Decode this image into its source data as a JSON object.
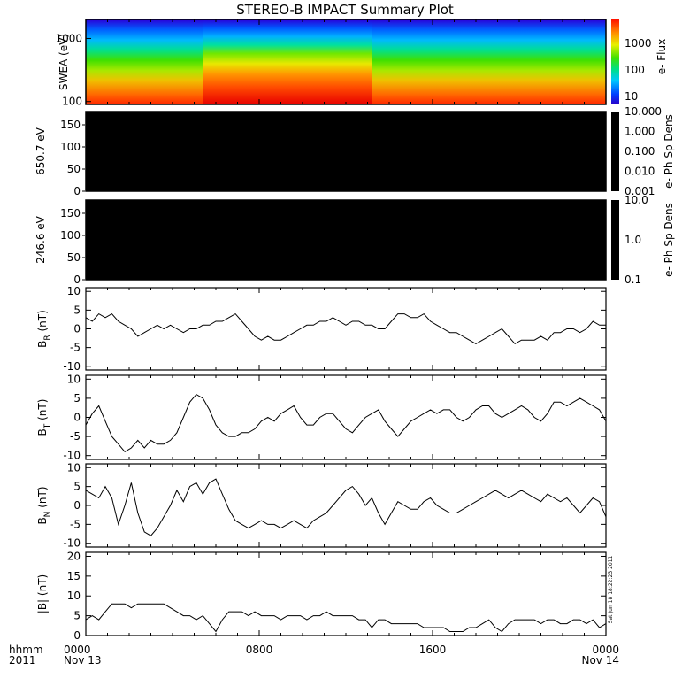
{
  "title": "STEREO-B IMPACT Summary Plot",
  "side_stamp": "Sat Jun 18 18:22:23 2011",
  "x_axis": {
    "corner_labels": [
      "hhmm",
      "2011"
    ],
    "range_hours": [
      0,
      24
    ],
    "ticks": [
      {
        "h": 0,
        "label": "0000",
        "sub": "Nov 13"
      },
      {
        "h": 8,
        "label": "0800",
        "sub": ""
      },
      {
        "h": 16,
        "label": "1600",
        "sub": ""
      },
      {
        "h": 24,
        "label": "0000",
        "sub": "Nov 14"
      }
    ]
  },
  "chart_data": [
    {
      "id": "swea",
      "type": "heatmap",
      "ylabel": "SWEA (eV)",
      "yscale": "log",
      "ylim": [
        90,
        2000
      ],
      "yticks": [
        {
          "v": 100,
          "label": "100"
        },
        {
          "v": 1000,
          "label": "1000"
        }
      ],
      "colorbar": {
        "label": "e- Flux",
        "scale": "log",
        "ticks": [
          {
            "v": 10,
            "label": "10"
          },
          {
            "v": 100,
            "label": "100"
          },
          {
            "v": 1000,
            "label": "1000"
          }
        ],
        "range": [
          5,
          8000
        ]
      },
      "note": "Electron flux spectrogram; high flux (red) at low energy, falling to blue above ~1500 eV; enhanced band between ~05:30 and ~13:00 UT."
    },
    {
      "id": "pad650",
      "type": "heatmap",
      "ylabel": "650.7 eV",
      "ylim": [
        0,
        180
      ],
      "yticks": [
        0,
        50,
        100,
        150
      ],
      "fill": "#000000",
      "colorbar": {
        "label": "e- Ph Sp Dens",
        "scale": "log",
        "ticks": [
          "10.000",
          "1.000",
          "0.100",
          "0.010",
          "0.001"
        ]
      }
    },
    {
      "id": "pad246",
      "type": "heatmap",
      "ylabel": "246.6 eV",
      "ylim": [
        0,
        180
      ],
      "yticks": [
        0,
        50,
        100,
        150
      ],
      "fill": "#000000",
      "colorbar": {
        "label": "e- Ph Sp Dens",
        "scale": "log",
        "ticks": [
          "10.0",
          "1.0",
          "0.1"
        ]
      }
    },
    {
      "id": "br",
      "type": "line",
      "ylabel": "B",
      "ylabel_sub": "R",
      "ylabel_unit": "(nT)",
      "ylim": [
        -11,
        11
      ],
      "yticks": [
        -10,
        -5,
        0,
        5,
        10
      ],
      "x": [
        0,
        0.3,
        0.6,
        0.9,
        1.2,
        1.5,
        1.8,
        2.1,
        2.4,
        2.7,
        3.0,
        3.3,
        3.6,
        3.9,
        4.2,
        4.5,
        4.8,
        5.1,
        5.4,
        5.7,
        6.0,
        6.3,
        6.6,
        6.9,
        7.2,
        7.5,
        7.8,
        8.1,
        8.4,
        8.7,
        9.0,
        9.3,
        9.6,
        9.9,
        10.2,
        10.5,
        10.8,
        11.1,
        11.4,
        11.7,
        12.0,
        12.3,
        12.6,
        12.9,
        13.2,
        13.5,
        13.8,
        14.1,
        14.4,
        14.7,
        15.0,
        15.3,
        15.6,
        15.9,
        16.2,
        16.5,
        16.8,
        17.1,
        17.4,
        17.7,
        18.0,
        18.3,
        18.6,
        18.9,
        19.2,
        19.5,
        19.8,
        20.1,
        20.4,
        20.7,
        21.0,
        21.3,
        21.6,
        21.9,
        22.2,
        22.5,
        22.8,
        23.1,
        23.4,
        23.7,
        24.0
      ],
      "y": [
        3,
        2,
        4,
        3,
        4,
        2,
        1,
        0,
        -2,
        -1,
        0,
        1,
        0,
        1,
        0,
        -1,
        0,
        0,
        1,
        1,
        2,
        2,
        3,
        4,
        2,
        0,
        -2,
        -3,
        -2,
        -3,
        -3,
        -2,
        -1,
        0,
        1,
        1,
        2,
        2,
        3,
        2,
        1,
        2,
        2,
        1,
        1,
        0,
        0,
        2,
        4,
        4,
        3,
        3,
        4,
        2,
        1,
        0,
        -1,
        -1,
        -2,
        -3,
        -4,
        -3,
        -2,
        -1,
        0,
        -2,
        -4,
        -3,
        -3,
        -3,
        -2,
        -3,
        -1,
        -1,
        0,
        0,
        -1,
        0,
        2,
        1,
        1
      ]
    },
    {
      "id": "bt",
      "type": "line",
      "ylabel": "B",
      "ylabel_sub": "T",
      "ylabel_unit": "(nT)",
      "ylim": [
        -11,
        11
      ],
      "yticks": [
        -10,
        -5,
        0,
        5,
        10
      ],
      "x": [
        0,
        0.3,
        0.6,
        0.9,
        1.2,
        1.5,
        1.8,
        2.1,
        2.4,
        2.7,
        3.0,
        3.3,
        3.6,
        3.9,
        4.2,
        4.5,
        4.8,
        5.1,
        5.4,
        5.7,
        6.0,
        6.3,
        6.6,
        6.9,
        7.2,
        7.5,
        7.8,
        8.1,
        8.4,
        8.7,
        9.0,
        9.3,
        9.6,
        9.9,
        10.2,
        10.5,
        10.8,
        11.1,
        11.4,
        11.7,
        12.0,
        12.3,
        12.6,
        12.9,
        13.2,
        13.5,
        13.8,
        14.1,
        14.4,
        14.7,
        15.0,
        15.3,
        15.6,
        15.9,
        16.2,
        16.5,
        16.8,
        17.1,
        17.4,
        17.7,
        18.0,
        18.3,
        18.6,
        18.9,
        19.2,
        19.5,
        19.8,
        20.1,
        20.4,
        20.7,
        21.0,
        21.3,
        21.6,
        21.9,
        22.2,
        22.5,
        22.8,
        23.1,
        23.4,
        23.7,
        24.0
      ],
      "y": [
        -2,
        1,
        3,
        -1,
        -5,
        -7,
        -9,
        -8,
        -6,
        -8,
        -6,
        -7,
        -7,
        -6,
        -4,
        0,
        4,
        6,
        5,
        2,
        -2,
        -4,
        -5,
        -5,
        -4,
        -4,
        -3,
        -1,
        0,
        -1,
        1,
        2,
        3,
        0,
        -2,
        -2,
        0,
        1,
        1,
        -1,
        -3,
        -4,
        -2,
        0,
        1,
        2,
        -1,
        -3,
        -5,
        -3,
        -1,
        0,
        1,
        2,
        1,
        2,
        2,
        0,
        -1,
        0,
        2,
        3,
        3,
        1,
        0,
        1,
        2,
        3,
        2,
        0,
        -1,
        1,
        4,
        4,
        3,
        4,
        5,
        4,
        3,
        2,
        -1
      ]
    },
    {
      "id": "bn",
      "type": "line",
      "ylabel": "B",
      "ylabel_sub": "N",
      "ylabel_unit": "(nT)",
      "ylim": [
        -11,
        11
      ],
      "yticks": [
        -10,
        -5,
        0,
        5,
        10
      ],
      "x": [
        0,
        0.3,
        0.6,
        0.9,
        1.2,
        1.5,
        1.8,
        2.1,
        2.4,
        2.7,
        3.0,
        3.3,
        3.6,
        3.9,
        4.2,
        4.5,
        4.8,
        5.1,
        5.4,
        5.7,
        6.0,
        6.3,
        6.6,
        6.9,
        7.2,
        7.5,
        7.8,
        8.1,
        8.4,
        8.7,
        9.0,
        9.3,
        9.6,
        9.9,
        10.2,
        10.5,
        10.8,
        11.1,
        11.4,
        11.7,
        12.0,
        12.3,
        12.6,
        12.9,
        13.2,
        13.5,
        13.8,
        14.1,
        14.4,
        14.7,
        15.0,
        15.3,
        15.6,
        15.9,
        16.2,
        16.5,
        16.8,
        17.1,
        17.4,
        17.7,
        18.0,
        18.3,
        18.6,
        18.9,
        19.2,
        19.5,
        19.8,
        20.1,
        20.4,
        20.7,
        21.0,
        21.3,
        21.6,
        21.9,
        22.2,
        22.5,
        22.8,
        23.1,
        23.4,
        23.7,
        24.0
      ],
      "y": [
        4,
        3,
        2,
        5,
        2,
        -5,
        0,
        6,
        -2,
        -7,
        -8,
        -6,
        -3,
        0,
        4,
        1,
        5,
        6,
        3,
        6,
        7,
        3,
        -1,
        -4,
        -5,
        -6,
        -5,
        -4,
        -5,
        -5,
        -6,
        -5,
        -4,
        -5,
        -6,
        -4,
        -3,
        -2,
        0,
        2,
        4,
        5,
        3,
        0,
        2,
        -2,
        -5,
        -2,
        1,
        0,
        -1,
        -1,
        1,
        2,
        0,
        -1,
        -2,
        -2,
        -1,
        0,
        1,
        2,
        3,
        4,
        3,
        2,
        3,
        4,
        3,
        2,
        1,
        3,
        2,
        1,
        2,
        0,
        -2,
        0,
        2,
        1,
        -3
      ]
    },
    {
      "id": "bmag",
      "type": "line",
      "ylabel": "|B| (nT)",
      "ylim": [
        0,
        21
      ],
      "yticks": [
        0,
        5,
        10,
        15,
        20
      ],
      "x": [
        0,
        0.3,
        0.6,
        0.9,
        1.2,
        1.5,
        1.8,
        2.1,
        2.4,
        2.7,
        3.0,
        3.3,
        3.6,
        3.9,
        4.2,
        4.5,
        4.8,
        5.1,
        5.4,
        5.7,
        6.0,
        6.3,
        6.6,
        6.9,
        7.2,
        7.5,
        7.8,
        8.1,
        8.4,
        8.7,
        9.0,
        9.3,
        9.6,
        9.9,
        10.2,
        10.5,
        10.8,
        11.1,
        11.4,
        11.7,
        12.0,
        12.3,
        12.6,
        12.9,
        13.2,
        13.5,
        13.8,
        14.1,
        14.4,
        14.7,
        15.0,
        15.3,
        15.6,
        15.9,
        16.2,
        16.5,
        16.8,
        17.1,
        17.4,
        17.7,
        18.0,
        18.3,
        18.6,
        18.9,
        19.2,
        19.5,
        19.8,
        20.1,
        20.4,
        20.7,
        21.0,
        21.3,
        21.6,
        21.9,
        22.2,
        22.5,
        22.8,
        23.1,
        23.4,
        23.7,
        24.0
      ],
      "y": [
        4,
        5,
        4,
        6,
        8,
        8,
        8,
        7,
        8,
        8,
        8,
        8,
        8,
        7,
        6,
        5,
        5,
        4,
        5,
        3,
        1,
        4,
        6,
        6,
        6,
        5,
        6,
        5,
        5,
        5,
        4,
        5,
        5,
        5,
        4,
        5,
        5,
        6,
        5,
        5,
        5,
        5,
        4,
        4,
        2,
        4,
        4,
        3,
        3,
        3,
        3,
        3,
        2,
        2,
        2,
        2,
        1,
        1,
        1,
        2,
        2,
        3,
        4,
        2,
        1,
        3,
        4,
        4,
        4,
        4,
        3,
        4,
        4,
        3,
        3,
        4,
        4,
        3,
        4,
        2,
        3
      ]
    }
  ]
}
